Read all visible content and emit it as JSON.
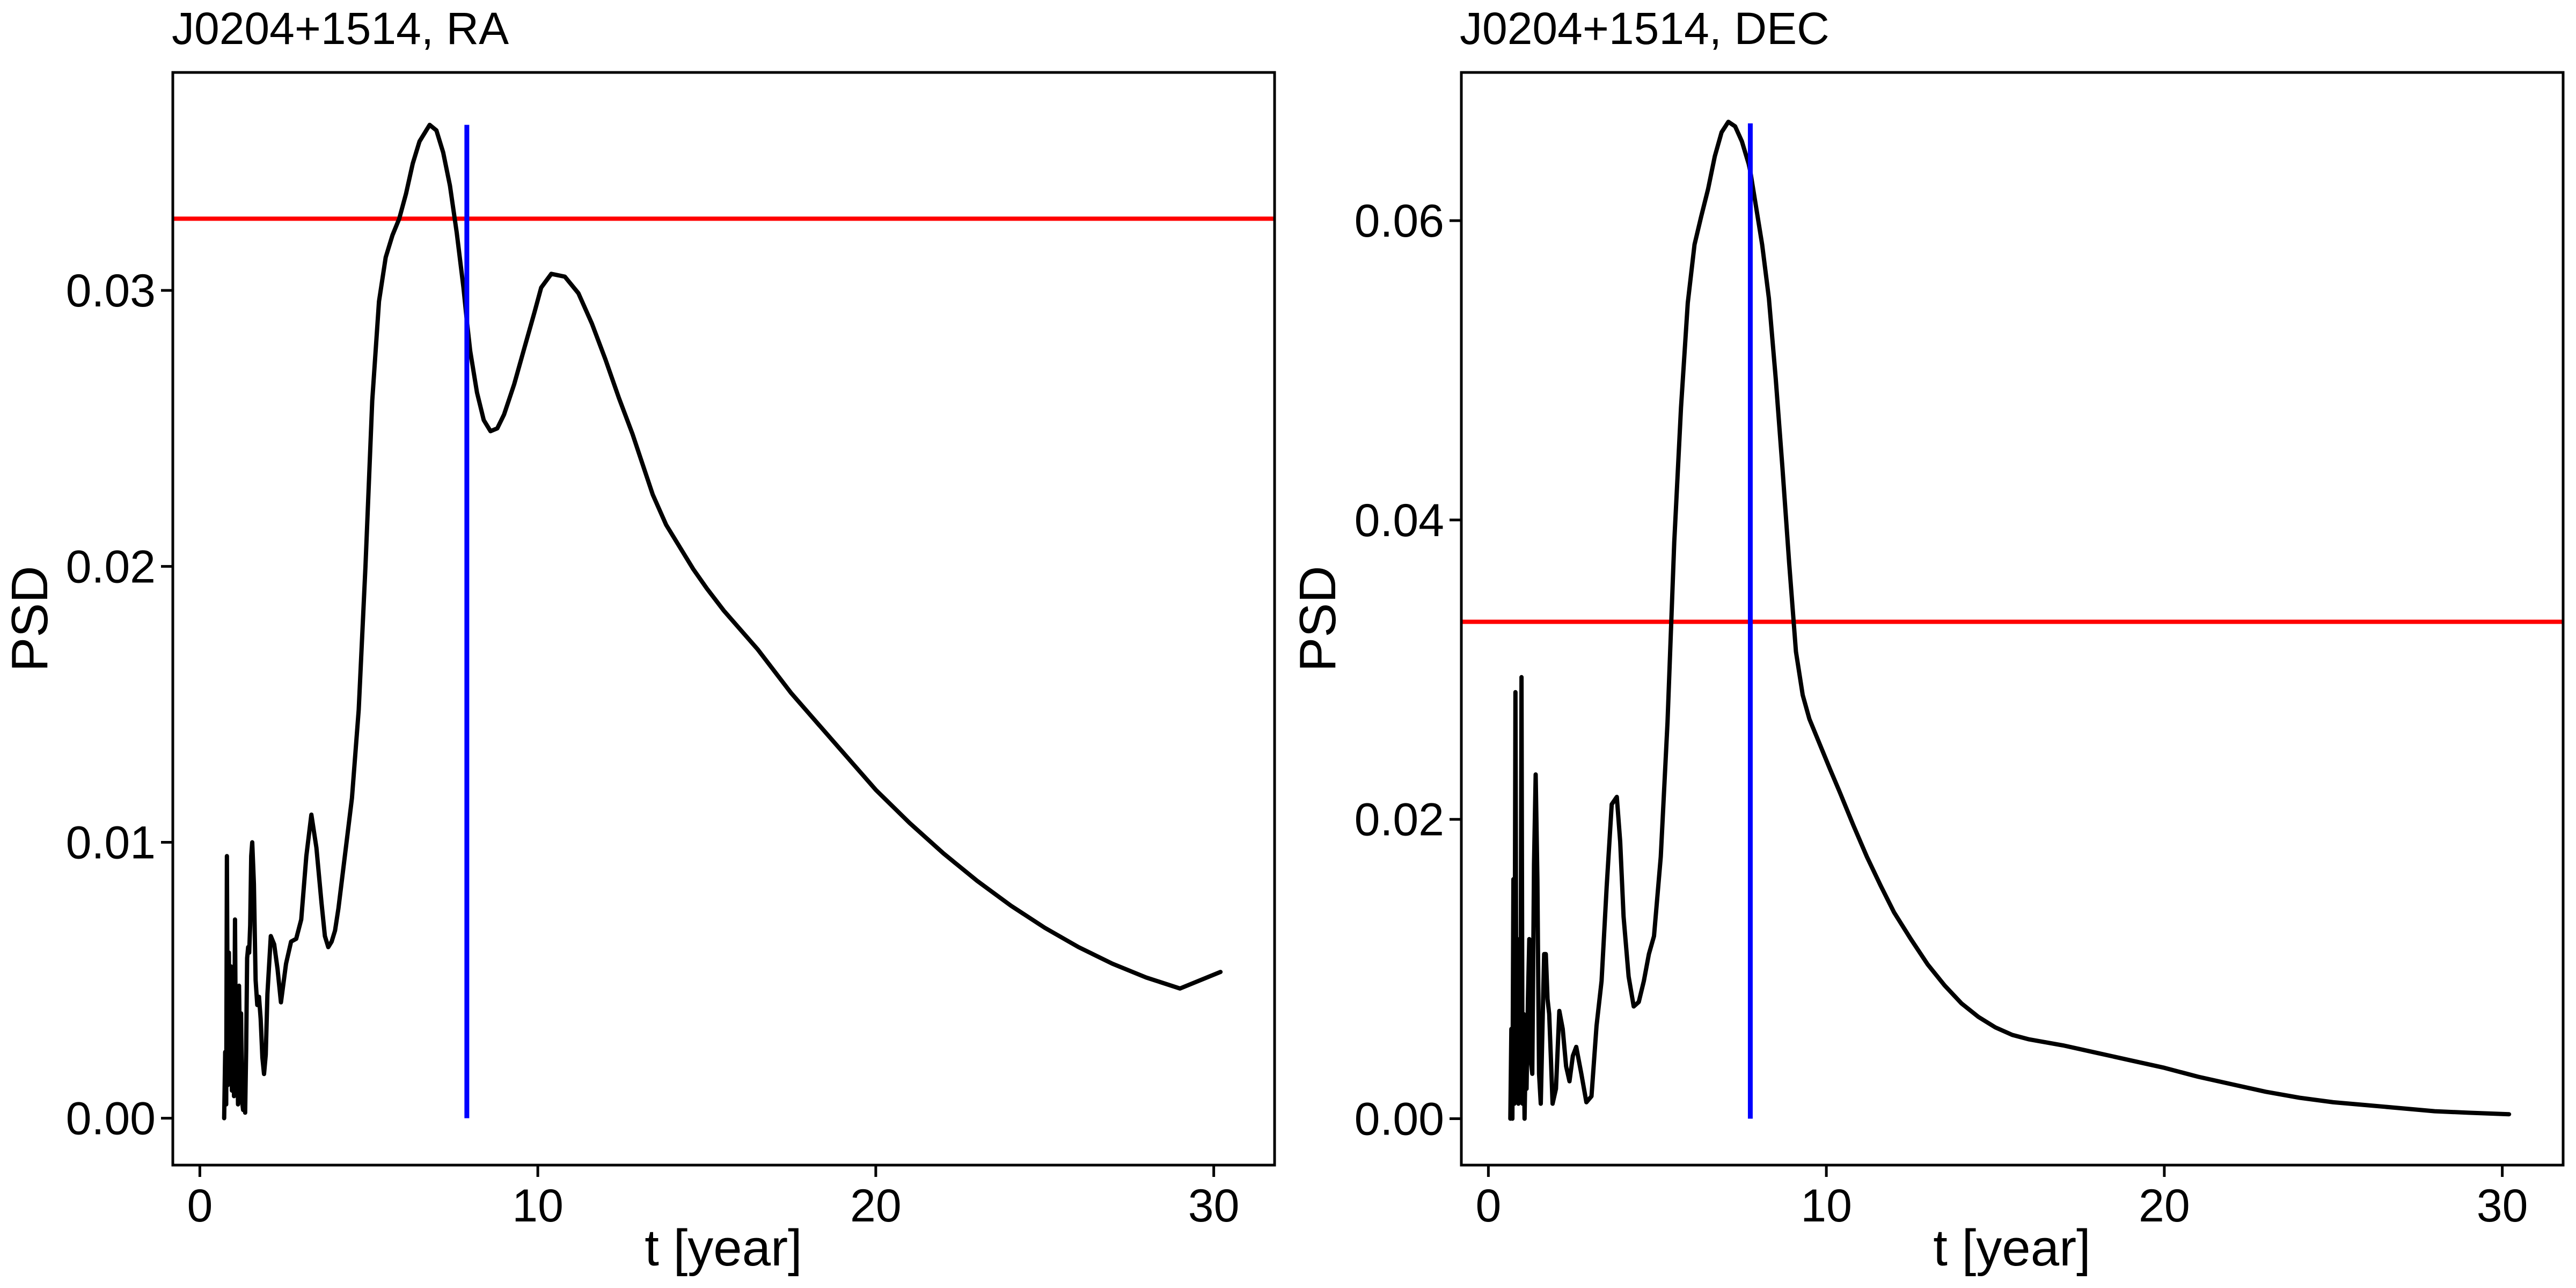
{
  "chart_data": [
    {
      "type": "line",
      "title": "J0204+1514,  RA",
      "xlabel": "t [year]",
      "ylabel": "PSD",
      "xlim": [
        -0.8,
        31.8
      ],
      "ylim": [
        -0.0017,
        0.0379
      ],
      "xticks": [
        0,
        10,
        20,
        30
      ],
      "xtick_labels": [
        "0",
        "10",
        "20",
        "30"
      ],
      "yticks": [
        0.0,
        0.01,
        0.02,
        0.03
      ],
      "ytick_labels": [
        "0.00",
        "0.01",
        "0.02",
        "0.03"
      ],
      "threshold": {
        "y": 0.0326,
        "color": "#ff0000"
      },
      "peak_marker": {
        "x": 7.9,
        "y0": 0.0,
        "y1": 0.036,
        "color": "#0000ff"
      },
      "series": [
        {
          "name": "PSD",
          "color": "#000000",
          "x": [
            0.72,
            0.75,
            0.78,
            0.8,
            0.83,
            0.86,
            0.89,
            0.92,
            0.95,
            0.98,
            1.01,
            1.04,
            1.07,
            1.1,
            1.13,
            1.16,
            1.19,
            1.22,
            1.25,
            1.28,
            1.31,
            1.34,
            1.37,
            1.4,
            1.43,
            1.46,
            1.49,
            1.52,
            1.55,
            1.6,
            1.65,
            1.7,
            1.75,
            1.8,
            1.85,
            1.9,
            1.95,
            2.0,
            2.1,
            2.2,
            2.3,
            2.4,
            2.55,
            2.7,
            2.85,
            3.0,
            3.15,
            3.3,
            3.45,
            3.6,
            3.7,
            3.8,
            3.9,
            4.0,
            4.1,
            4.2,
            4.3,
            4.5,
            4.7,
            4.9,
            5.1,
            5.3,
            5.5,
            5.7,
            5.9,
            6.1,
            6.3,
            6.5,
            6.8,
            7.0,
            7.2,
            7.4,
            7.6,
            7.8,
            7.9,
            8.0,
            8.2,
            8.4,
            8.6,
            8.8,
            9.0,
            9.3,
            9.6,
            9.9,
            10.1,
            10.4,
            10.8,
            11.2,
            11.6,
            12.0,
            12.4,
            12.8,
            13.1,
            13.4,
            13.8,
            14.2,
            14.6,
            15.0,
            15.5,
            16.0,
            16.5,
            17.0,
            17.5,
            18.0,
            19.0,
            20.0,
            21.0,
            22.0,
            23.0,
            24.0,
            25.0,
            26.0,
            27.0,
            28.0,
            29.0,
            30.2
          ],
          "y": [
            0.0,
            0.0024,
            0.0005,
            0.0095,
            0.0012,
            0.006,
            0.0015,
            0.0055,
            0.001,
            0.0045,
            0.0008,
            0.0072,
            0.0014,
            0.0035,
            0.0005,
            0.0048,
            0.002,
            0.0038,
            0.0006,
            0.0003,
            0.0012,
            0.0002,
            0.0025,
            0.0058,
            0.0062,
            0.006,
            0.007,
            0.0095,
            0.01,
            0.0085,
            0.005,
            0.0041,
            0.0044,
            0.0036,
            0.0022,
            0.0016,
            0.0023,
            0.0045,
            0.0066,
            0.0063,
            0.0054,
            0.0042,
            0.0056,
            0.0064,
            0.0065,
            0.0072,
            0.0095,
            0.011,
            0.0098,
            0.0078,
            0.0066,
            0.0062,
            0.0064,
            0.0068,
            0.0076,
            0.0086,
            0.0096,
            0.0116,
            0.0148,
            0.02,
            0.026,
            0.0296,
            0.0312,
            0.032,
            0.0326,
            0.0335,
            0.0346,
            0.0354,
            0.036,
            0.0358,
            0.035,
            0.0338,
            0.0321,
            0.0301,
            0.0289,
            0.0278,
            0.0263,
            0.0253,
            0.0249,
            0.025,
            0.0255,
            0.0266,
            0.0279,
            0.0292,
            0.0301,
            0.0306,
            0.0305,
            0.0299,
            0.0288,
            0.0275,
            0.0261,
            0.0248,
            0.0237,
            0.0226,
            0.0215,
            0.0207,
            0.0199,
            0.0192,
            0.0184,
            0.0177,
            0.017,
            0.0162,
            0.0154,
            0.0147,
            0.0133,
            0.0119,
            0.0107,
            0.0096,
            0.0086,
            0.0077,
            0.0069,
            0.0062,
            0.0056,
            0.0051,
            0.0047,
            0.0053
          ]
        }
      ]
    },
    {
      "type": "line",
      "title": "J0204+1514,  DEC",
      "xlabel": "t [year]",
      "ylabel": "PSD",
      "xlim": [
        -0.8,
        31.8
      ],
      "ylim": [
        -0.0031,
        0.0699
      ],
      "xticks": [
        0,
        10,
        20,
        30
      ],
      "xtick_labels": [
        "0",
        "10",
        "20",
        "30"
      ],
      "yticks": [
        0.0,
        0.02,
        0.04,
        0.06
      ],
      "ytick_labels": [
        "0.00",
        "0.02",
        "0.04",
        "0.06"
      ],
      "threshold": {
        "y": 0.0332,
        "color": "#ff0000"
      },
      "peak_marker": {
        "x": 7.75,
        "y0": 0.0,
        "y1": 0.0665,
        "color": "#0000ff"
      },
      "series": [
        {
          "name": "PSD",
          "color": "#000000",
          "x": [
            0.65,
            0.68,
            0.71,
            0.74,
            0.77,
            0.8,
            0.83,
            0.86,
            0.89,
            0.92,
            0.95,
            0.98,
            1.01,
            1.04,
            1.07,
            1.1,
            1.13,
            1.17,
            1.21,
            1.25,
            1.3,
            1.35,
            1.4,
            1.45,
            1.5,
            1.55,
            1.6,
            1.65,
            1.7,
            1.75,
            1.8,
            1.85,
            1.9,
            2.0,
            2.1,
            2.2,
            2.3,
            2.4,
            2.5,
            2.6,
            2.75,
            2.9,
            3.05,
            3.2,
            3.35,
            3.5,
            3.65,
            3.8,
            3.9,
            4.0,
            4.15,
            4.3,
            4.45,
            4.6,
            4.75,
            4.9,
            5.1,
            5.3,
            5.5,
            5.7,
            5.9,
            6.1,
            6.3,
            6.5,
            6.7,
            6.9,
            7.1,
            7.3,
            7.5,
            7.7,
            7.75,
            7.9,
            8.1,
            8.3,
            8.5,
            8.7,
            8.9,
            9.1,
            9.3,
            9.5,
            9.7,
            9.9,
            10.1,
            10.4,
            10.8,
            11.2,
            11.6,
            12.0,
            12.5,
            13.0,
            13.5,
            14.0,
            14.5,
            15.0,
            15.5,
            16.0,
            16.5,
            17.0,
            18.0,
            19.0,
            20.0,
            21.0,
            22.0,
            23.0,
            24.0,
            25.0,
            26.0,
            27.0,
            28.0,
            29.0,
            30.2
          ],
          "y": [
            0.0,
            0.006,
            0.0,
            0.016,
            0.001,
            0.0285,
            0.002,
            0.008,
            0.001,
            0.012,
            0.003,
            0.0295,
            0.001,
            0.007,
            0.0,
            0.004,
            0.002,
            0.008,
            0.012,
            0.004,
            0.003,
            0.017,
            0.023,
            0.016,
            0.003,
            0.001,
            0.006,
            0.011,
            0.011,
            0.008,
            0.007,
            0.004,
            0.001,
            0.002,
            0.0072,
            0.006,
            0.0035,
            0.0025,
            0.0042,
            0.0048,
            0.003,
            0.0011,
            0.0015,
            0.0062,
            0.0092,
            0.0155,
            0.021,
            0.0215,
            0.0185,
            0.0135,
            0.0095,
            0.0075,
            0.0078,
            0.0092,
            0.011,
            0.0122,
            0.0175,
            0.0265,
            0.0385,
            0.0475,
            0.0545,
            0.0584,
            0.0603,
            0.0621,
            0.0643,
            0.0659,
            0.0666,
            0.0663,
            0.0653,
            0.0638,
            0.0633,
            0.0612,
            0.0584,
            0.0548,
            0.0495,
            0.0435,
            0.0371,
            0.0312,
            0.0283,
            0.0267,
            0.0256,
            0.0245,
            0.0234,
            0.0218,
            0.0196,
            0.0175,
            0.0156,
            0.0138,
            0.012,
            0.0103,
            0.0089,
            0.0077,
            0.0068,
            0.0061,
            0.0056,
            0.0053,
            0.0051,
            0.0049,
            0.0044,
            0.0039,
            0.0034,
            0.0028,
            0.0023,
            0.0018,
            0.0014,
            0.0011,
            0.0009,
            0.0007,
            0.0005,
            0.0004,
            0.0003
          ]
        }
      ]
    }
  ]
}
